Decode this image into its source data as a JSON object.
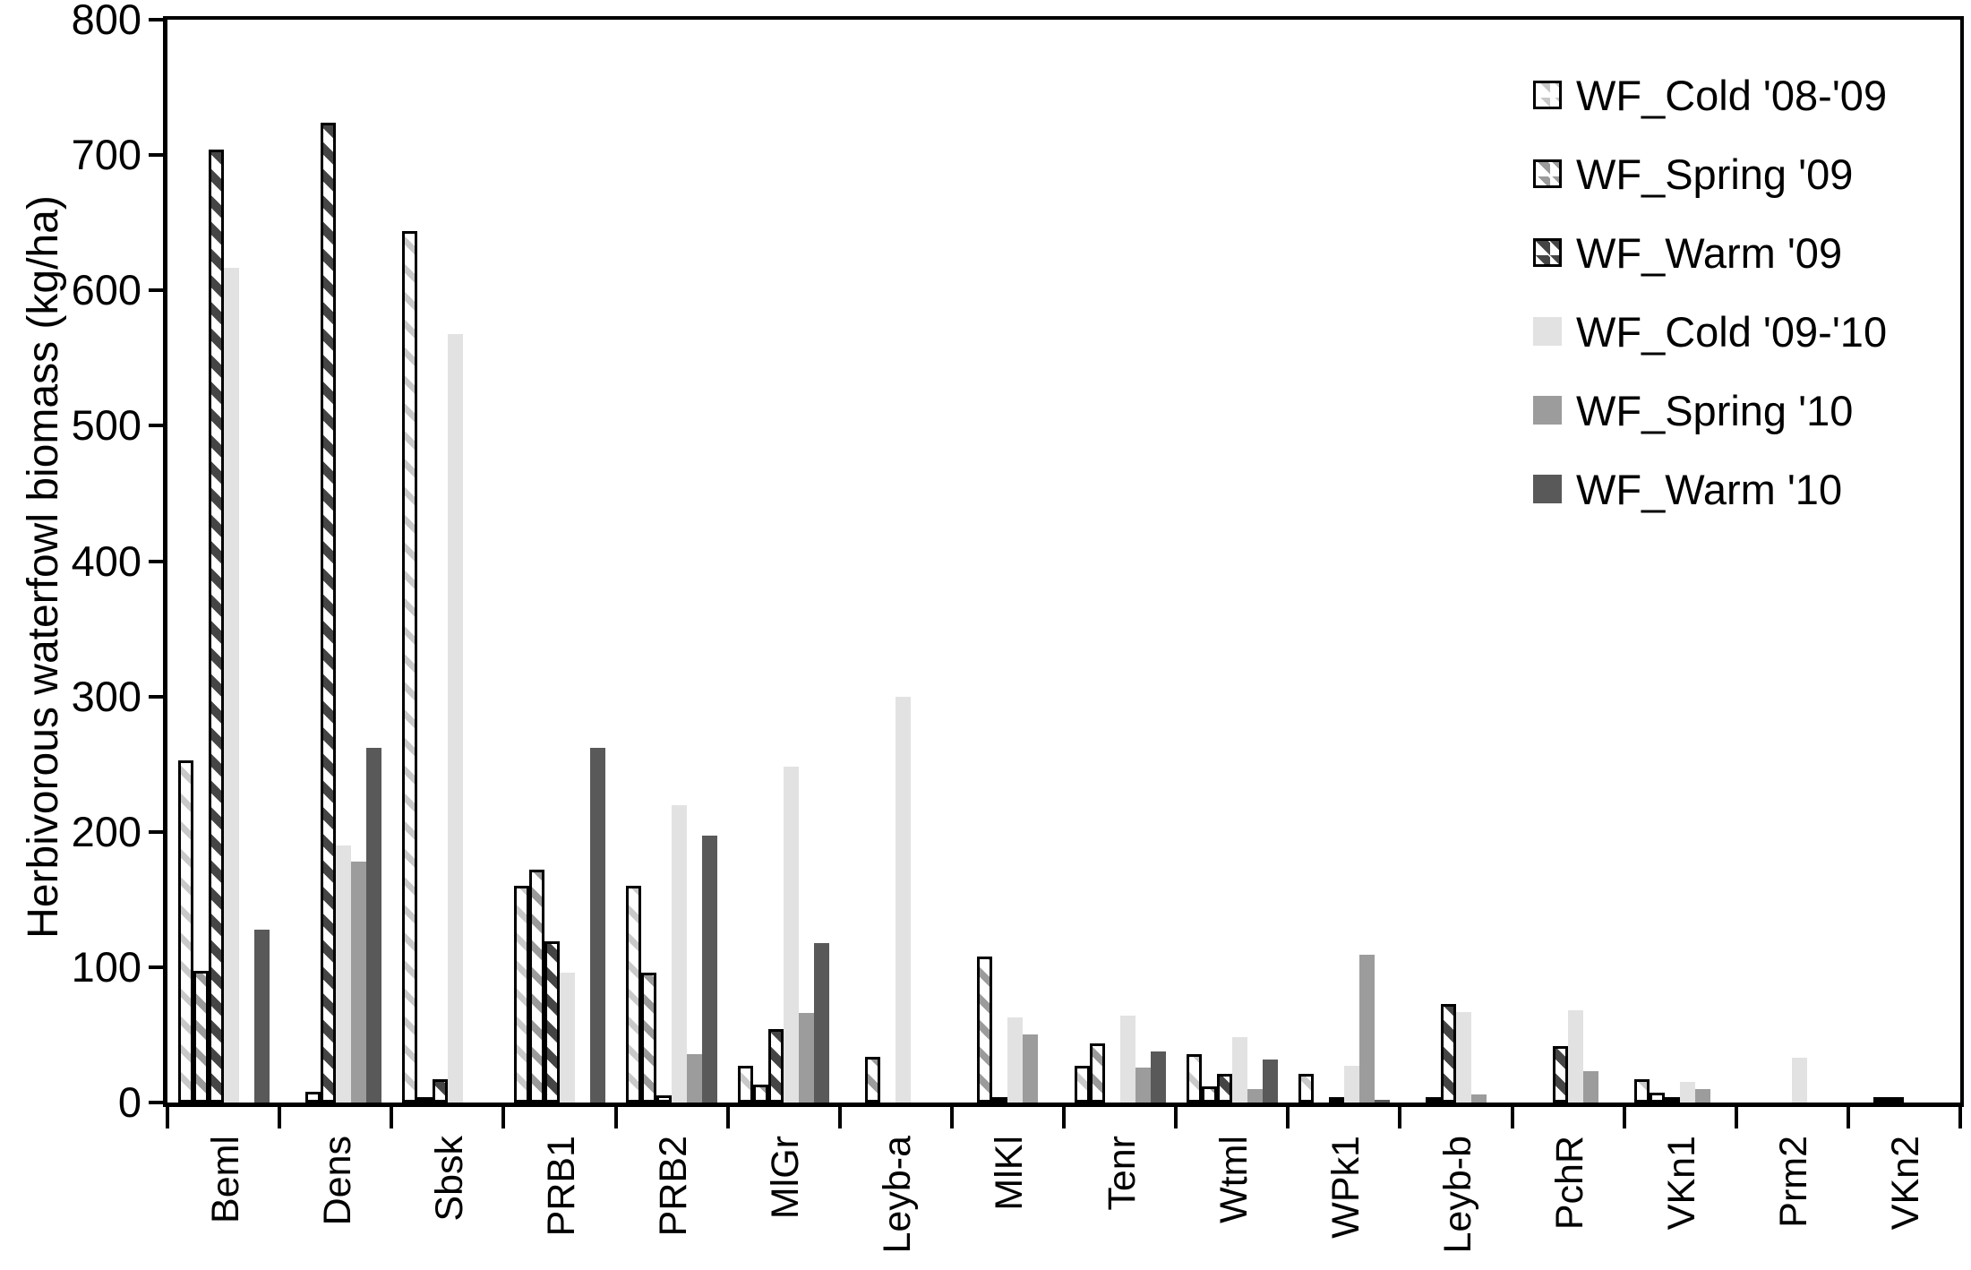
{
  "chart_data": {
    "type": "bar",
    "title": "",
    "xlabel": "",
    "ylabel": "Herbivorous waterfowl biomass (kg/ha)",
    "ylim": [
      0,
      800
    ],
    "yticks": [
      0,
      100,
      200,
      300,
      400,
      500,
      600,
      700,
      800
    ],
    "grid": false,
    "legend_position": "top-right-inside",
    "plot_border": true,
    "categories": [
      "Beml",
      "Dens",
      "Sbsk",
      "PRB1",
      "PRB2",
      "MlGr",
      "Leyb-a",
      "MlKl",
      "Tenr",
      "Wtml",
      "WPk1",
      "Leyb-b",
      "PchR",
      "VKn1",
      "Prm2",
      "VKn2"
    ],
    "series": [
      {
        "name": "WF_Cold '08-'09",
        "fill": "hatch-light",
        "values": [
          253,
          0,
          644,
          160,
          160,
          27,
          0,
          0,
          27,
          36,
          21,
          0,
          0,
          17,
          0,
          0
        ]
      },
      {
        "name": "WF_Spring '09",
        "fill": "hatch-medium",
        "values": [
          97,
          8,
          3,
          172,
          96,
          13,
          34,
          108,
          44,
          12,
          0,
          3,
          0,
          7,
          0,
          2
        ]
      },
      {
        "name": "WF_Warm '09",
        "fill": "hatch-dark",
        "values": [
          704,
          724,
          17,
          119,
          5,
          54,
          0,
          2,
          0,
          21,
          2,
          73,
          42,
          1,
          0,
          2
        ]
      },
      {
        "name": "WF_Cold '09-'10",
        "fill": "solid-light",
        "values": [
          617,
          190,
          568,
          96,
          220,
          248,
          300,
          63,
          64,
          48,
          27,
          67,
          68,
          15,
          33,
          0
        ]
      },
      {
        "name": "WF_Spring '10",
        "fill": "solid-medium",
        "values": [
          0,
          178,
          0,
          0,
          36,
          66,
          0,
          50,
          26,
          10,
          109,
          6,
          23,
          10,
          0,
          0
        ]
      },
      {
        "name": "WF_Warm '10",
        "fill": "solid-dark",
        "values": [
          128,
          262,
          0,
          262,
          197,
          118,
          0,
          0,
          38,
          32,
          2,
          0,
          0,
          0,
          0,
          0
        ]
      }
    ],
    "colors": {
      "background": "#ffffff",
      "axis": "#000000",
      "text": "#000000",
      "bar_outline": "#000000",
      "hatch_base": "#ffffff",
      "hatch_light_stripe": "#c9c9c9",
      "hatch_medium_stripe": "#9b9b9b",
      "hatch_dark_stripe": "#454545",
      "solid_light": "#e2e2e2",
      "solid_medium": "#9c9c9c",
      "solid_dark": "#595959"
    }
  }
}
